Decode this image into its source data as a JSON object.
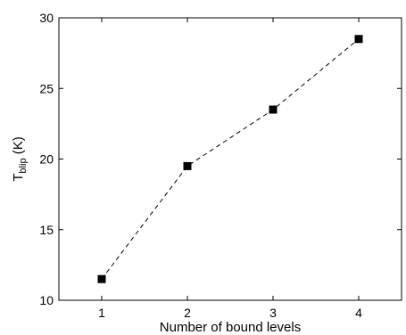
{
  "chart_data": {
    "type": "line",
    "title": "",
    "xlabel": "Number of bound levels",
    "ylabel": {
      "base": "T",
      "subscript": "blip",
      "suffix": " (K)"
    },
    "x": [
      1,
      2,
      3,
      4
    ],
    "series": [
      {
        "values": [
          11.5,
          19.5,
          23.5,
          28.5
        ],
        "color": "#000000",
        "line_style": "dashed",
        "marker": "square"
      }
    ],
    "xlim": [
      0.5,
      4.5
    ],
    "ylim": [
      10,
      30
    ],
    "xticks": [
      1,
      2,
      3,
      4
    ],
    "yticks": [
      10,
      15,
      20,
      25,
      30
    ],
    "grid": false
  }
}
